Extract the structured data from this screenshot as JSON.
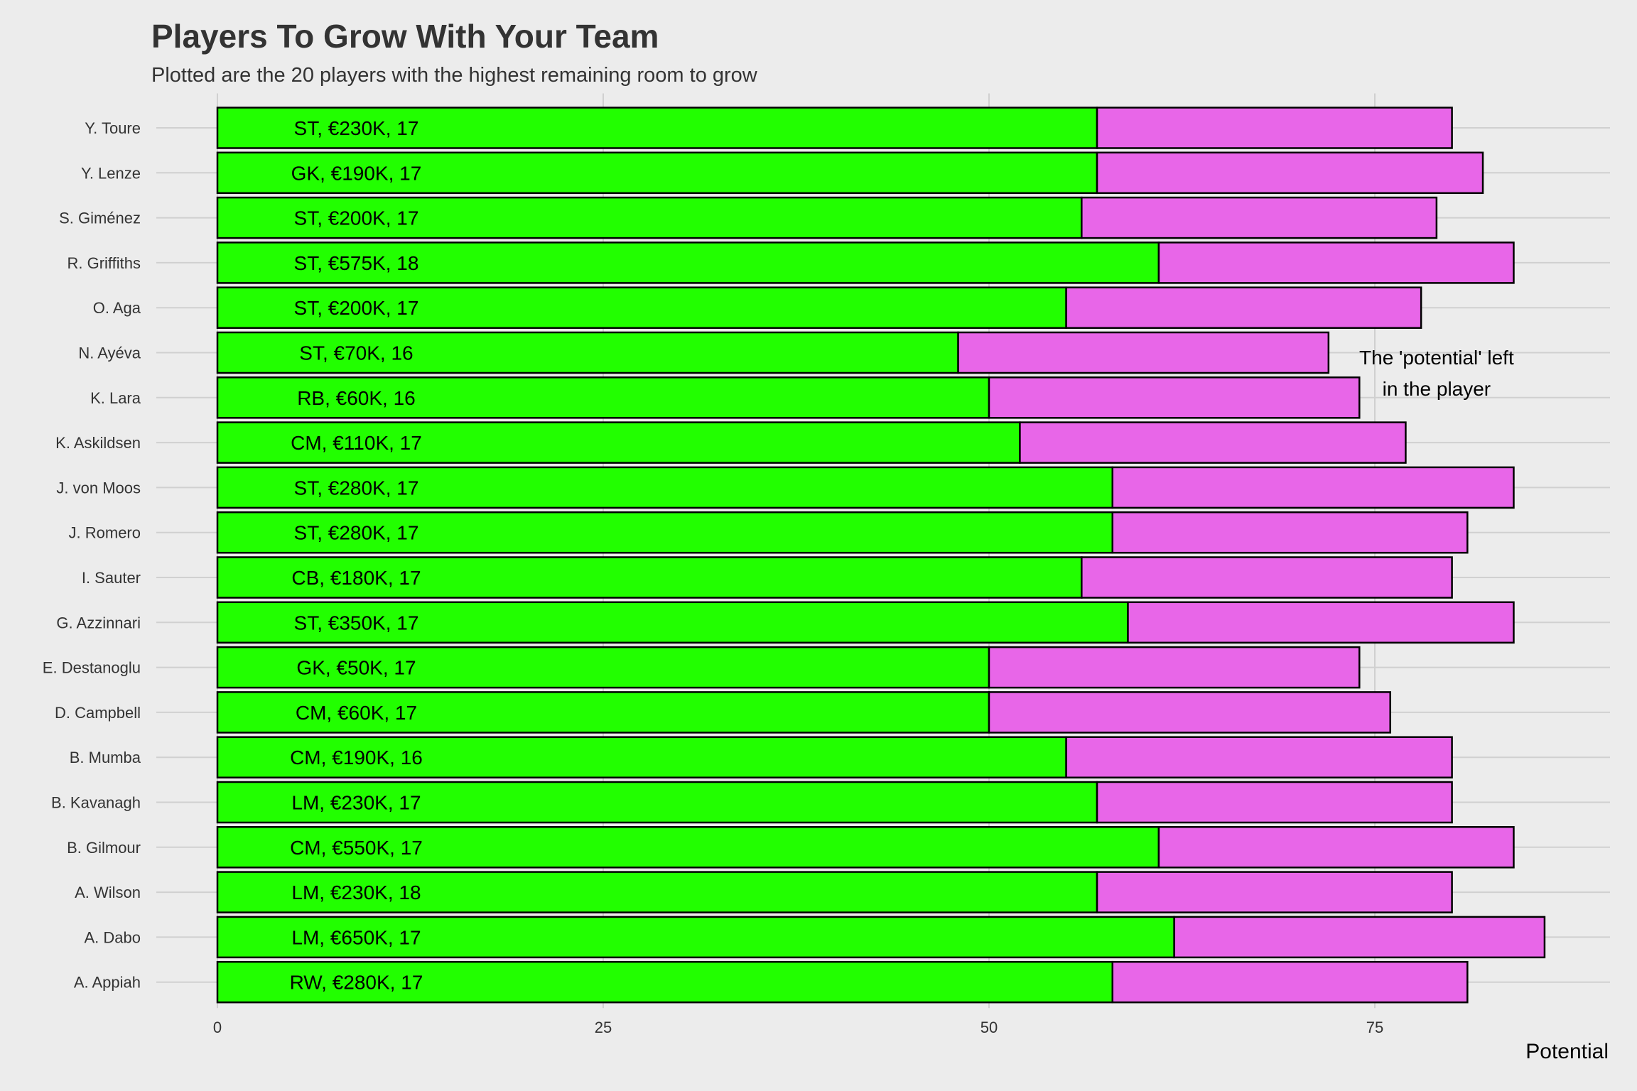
{
  "chart_data": {
    "type": "bar",
    "orientation": "horizontal",
    "stacked": true,
    "title": "Players To Grow With Your Team",
    "subtitle": "Plotted are the 20 players with the highest remaining room to grow",
    "xlabel": "Potential",
    "ylabel": "",
    "xlim": [
      0,
      90
    ],
    "x_ticks": [
      0,
      25,
      50,
      75
    ],
    "grid": true,
    "annotation": {
      "lines": [
        "The 'potential' left",
        "in the player"
      ],
      "x": 79,
      "y_between": [
        "N. Ayéva",
        "K. Lara"
      ]
    },
    "colors": {
      "overall": "#22ff00",
      "potential_left": "#e866e8",
      "bar_outline": "#000000",
      "gridline": "#d0d0d0",
      "background": "#ececec"
    },
    "categories": [
      "Y. Toure",
      "Y. Lenze",
      "S. Giménez",
      "R. Griffiths",
      "O. Aga",
      "N. Ayéva",
      "K. Lara",
      "K. Askildsen",
      "J. von Moos",
      "J. Romero",
      "I. Sauter",
      "G. Azzinnari",
      "E. Destanoglu",
      "D. Campbell",
      "B. Mumba",
      "B. Kavanagh",
      "B. Gilmour",
      "A. Wilson",
      "A. Dabo",
      "A. Appiah"
    ],
    "series": [
      {
        "values": [
          57,
          57,
          56,
          61,
          55,
          48,
          50,
          52,
          58,
          58,
          56,
          59,
          50,
          50,
          55,
          57,
          61,
          57,
          62,
          58
        ]
      },
      {
        "values": [
          23,
          25,
          23,
          23,
          23,
          24,
          24,
          25,
          26,
          23,
          24,
          25,
          24,
          26,
          25,
          23,
          23,
          23,
          24,
          23
        ]
      }
    ],
    "totals": [
      80,
      82,
      79,
      84,
      78,
      72,
      74,
      77,
      84,
      81,
      80,
      84,
      74,
      76,
      80,
      80,
      84,
      80,
      86,
      81
    ],
    "bar_labels": [
      "ST, €230K, 17",
      "GK, €190K, 17",
      "ST, €200K, 17",
      "ST, €575K, 18",
      "ST, €200K, 17",
      "ST, €70K, 16",
      "RB, €60K, 16",
      "CM, €110K, 17",
      "ST, €280K, 17",
      "ST, €280K, 17",
      "CB, €180K, 17",
      "ST, €350K, 17",
      "GK, €50K, 17",
      "CM, €60K, 17",
      "CM, €190K, 16",
      "LM, €230K, 17",
      "CM, €550K, 17",
      "LM, €230K, 18",
      "LM, €650K, 17",
      "RW, €280K, 17"
    ],
    "bar_label_x": 9
  }
}
